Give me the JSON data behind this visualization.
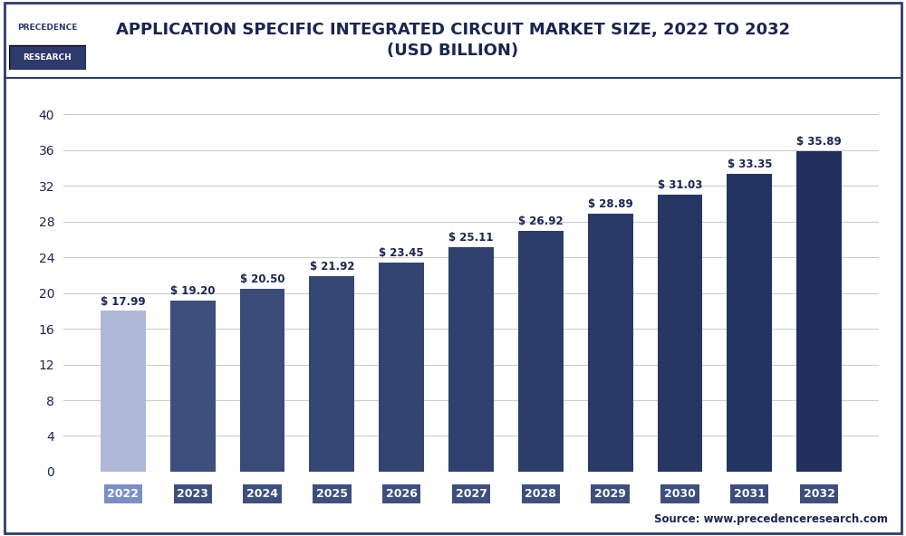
{
  "title_line1": "APPLICATION SPECIFIC INTEGRATED CIRCUIT MARKET SIZE, 2022 TO 2032",
  "title_line2": "(USD BILLION)",
  "years": [
    2022,
    2023,
    2024,
    2025,
    2026,
    2027,
    2028,
    2029,
    2030,
    2031,
    2032
  ],
  "values": [
    17.99,
    19.2,
    20.5,
    21.92,
    23.45,
    25.11,
    26.92,
    28.89,
    31.03,
    33.35,
    35.89
  ],
  "bar_colors": [
    "#b0b8d8",
    "#3d4f7c",
    "#3a4b78",
    "#364775",
    "#334471",
    "#30406e",
    "#2d3d6a",
    "#2a3a67",
    "#273763",
    "#243460",
    "#21305c"
  ],
  "label_color": "#1a2550",
  "tick_label_color": "#1a2550",
  "year_box_color_2022": "#7b8fc7",
  "year_box_color_rest": "#3d4f7c",
  "ylim": [
    0,
    42
  ],
  "yticks": [
    0,
    4,
    8,
    12,
    16,
    20,
    24,
    28,
    32,
    36,
    40
  ],
  "grid_color": "#cccccc",
  "bg_color": "#ffffff",
  "source_text": "Source: www.precedenceresearch.com",
  "logo_text_top": "PRECEDENCE",
  "logo_text_bottom": "RESEARCH",
  "border_color": "#2d3a6b",
  "title_color": "#1a2550"
}
